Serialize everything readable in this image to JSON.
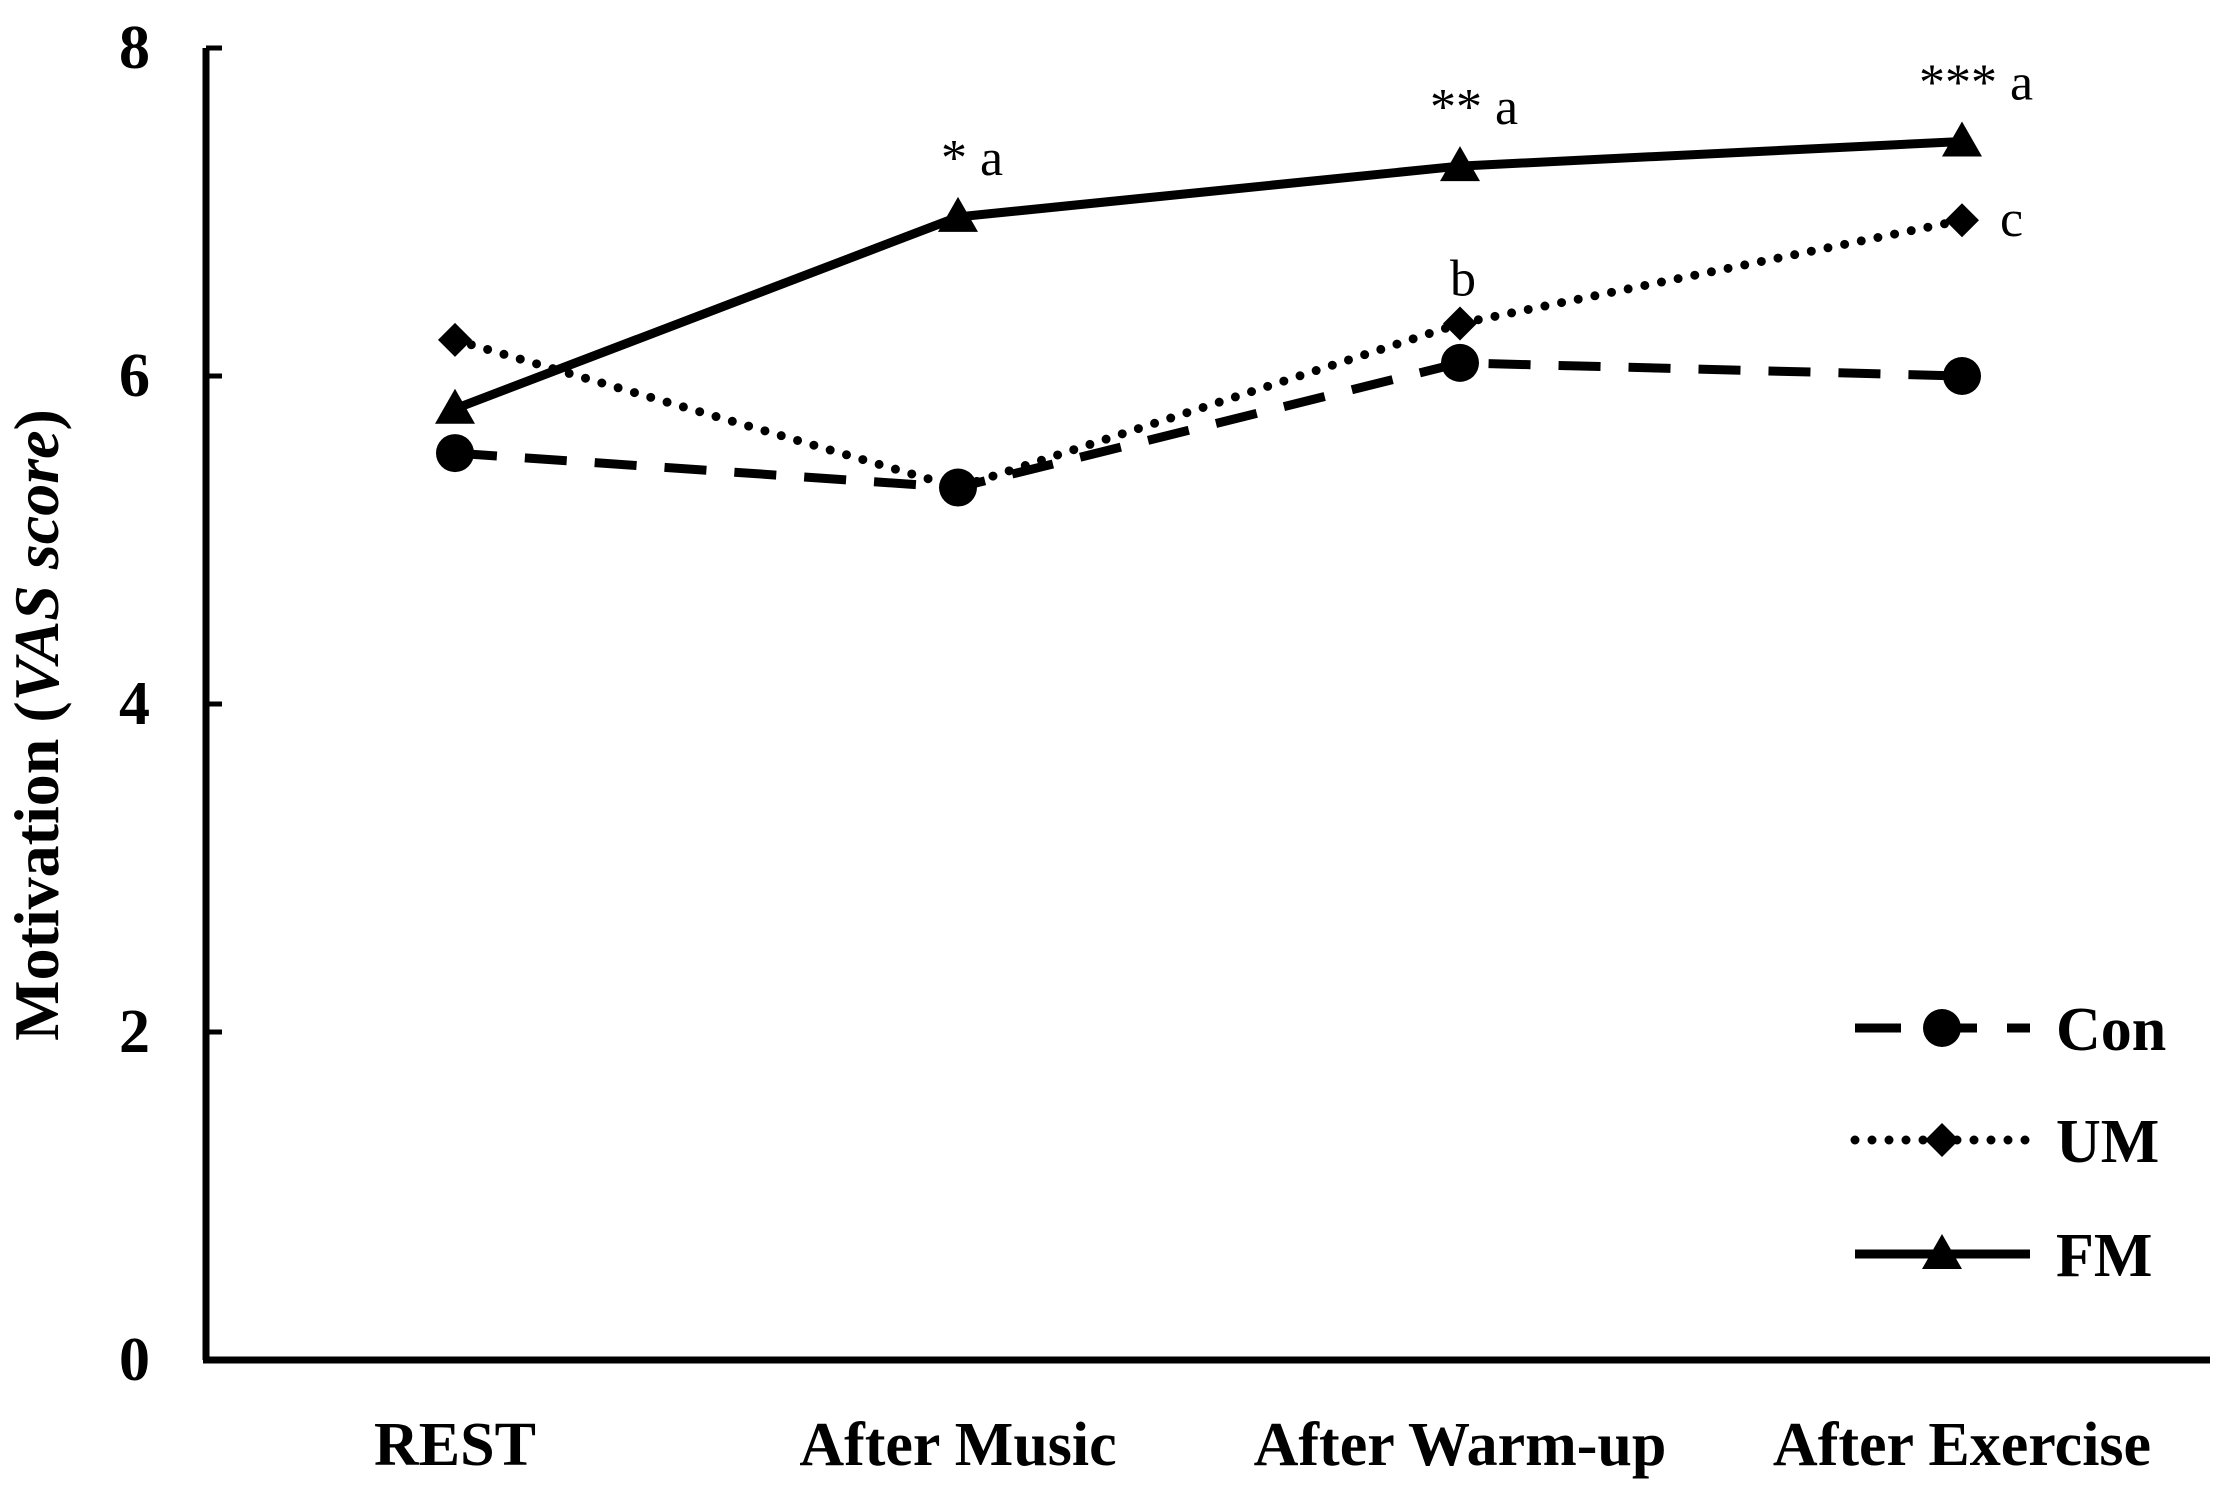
{
  "chart_data": {
    "type": "line",
    "title": "",
    "xlabel": "",
    "ylabel_main": "Motivation (",
    "ylabel_italic": "VAS score",
    "ylabel_end": ")",
    "categories": [
      "REST",
      "After Music",
      "After Warm-up",
      "After Exercise"
    ],
    "ylim": [
      0,
      8
    ],
    "yticks": [
      0,
      2,
      4,
      6,
      8
    ],
    "series": [
      {
        "name": "Con",
        "marker": "circle",
        "linestyle": "dashed",
        "values": [
          5.53,
          5.32,
          6.08,
          6.0
        ]
      },
      {
        "name": "UM",
        "marker": "diamond",
        "linestyle": "dotted",
        "values": [
          6.22,
          5.32,
          6.32,
          6.95
        ]
      },
      {
        "name": "FM",
        "marker": "triangle",
        "linestyle": "solid",
        "values": [
          5.8,
          6.97,
          7.28,
          7.43
        ]
      }
    ],
    "annotations": [
      {
        "category": 1,
        "series": "FM",
        "text": "* a"
      },
      {
        "category": 2,
        "series": "FM",
        "text": "** a"
      },
      {
        "category": 3,
        "series": "FM",
        "text": "*** a"
      },
      {
        "category": 2,
        "series": "UM",
        "text": "b"
      },
      {
        "category": 3,
        "series": "UM",
        "text": "c"
      }
    ],
    "legend_position": "bottom-right",
    "grid": false
  }
}
